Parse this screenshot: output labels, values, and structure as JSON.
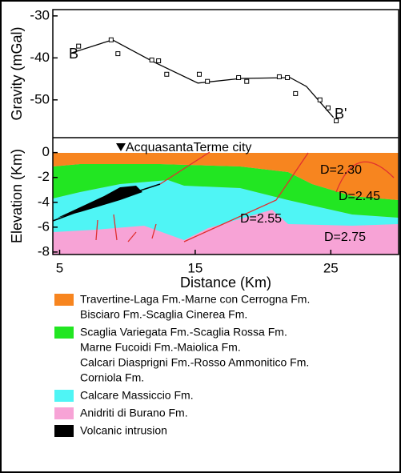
{
  "chart_data": [
    {
      "type": "line",
      "ylabel": "Gravity (mGal)",
      "xlim": [
        4.5,
        30
      ],
      "ylim": [
        -59,
        -28.5
      ],
      "yticks": [
        -30,
        -40,
        -50
      ],
      "series": [
        {
          "mode": "line",
          "color": "#000000",
          "x": [
            5.8,
            8.9,
            11.9,
            15.2,
            18.4,
            22,
            23.2,
            25.2
          ],
          "values": [
            -38.9,
            -35.7,
            -40.9,
            -46,
            -44.9,
            -44.7,
            -46.8,
            -54.2
          ]
        },
        {
          "mode": "square",
          "color": "#000000",
          "x": [
            6.4,
            8.8,
            9.3,
            11.8,
            12.3,
            12.9,
            15.3,
            15.9,
            18.2,
            18.8,
            21.2,
            21.8,
            22.4,
            24.2,
            24.8,
            25.4
          ],
          "values": [
            -37.2,
            -35.7,
            -39,
            -40.5,
            -40.7,
            -43.9,
            -43.9,
            -45.6,
            -44.7,
            -45.6,
            -44.5,
            -44.7,
            -48.5,
            -50,
            -51.9,
            -55
          ]
        }
      ],
      "annotations": [
        "B",
        "B'"
      ]
    },
    {
      "type": "section",
      "ylabel": "Elevation (Km)",
      "xlabel": "Distance (Km)",
      "xlim": [
        4.5,
        30
      ],
      "ylim": [
        -8.2,
        1.2
      ],
      "xticks": [
        5,
        15,
        25
      ],
      "yticks": [
        0,
        -2,
        -4,
        -6,
        -8
      ],
      "annotations": [
        "AcquasantaTerme city",
        "D=2.30",
        "D=2.45",
        "D=2.55",
        "D=2.75"
      ],
      "legend": [
        {
          "color": "#f7851f",
          "lines": [
            "Travertine-Laga Fm.-Marne con Cerrogna Fm.",
            "Bisciaro Fm.-Scaglia Cinerea Fm."
          ]
        },
        {
          "color": "#22e622",
          "lines": [
            "Scaglia Variegata Fm.-Scaglia Rossa Fm.",
            "Marne Fucoidi Fm.-Maiolica Fm.",
            "Calcari Diasprigni Fm.-Rosso Ammonitico Fm.",
            "Corniola Fm."
          ]
        },
        {
          "color": "#4ff5f5",
          "lines": [
            "Calcare Massiccio Fm."
          ]
        },
        {
          "color": "#f7a3d6",
          "lines": [
            "Anidriti di Burano Fm."
          ]
        },
        {
          "color": "#000000",
          "lines": [
            "Volcanic intrusion"
          ]
        }
      ]
    }
  ]
}
